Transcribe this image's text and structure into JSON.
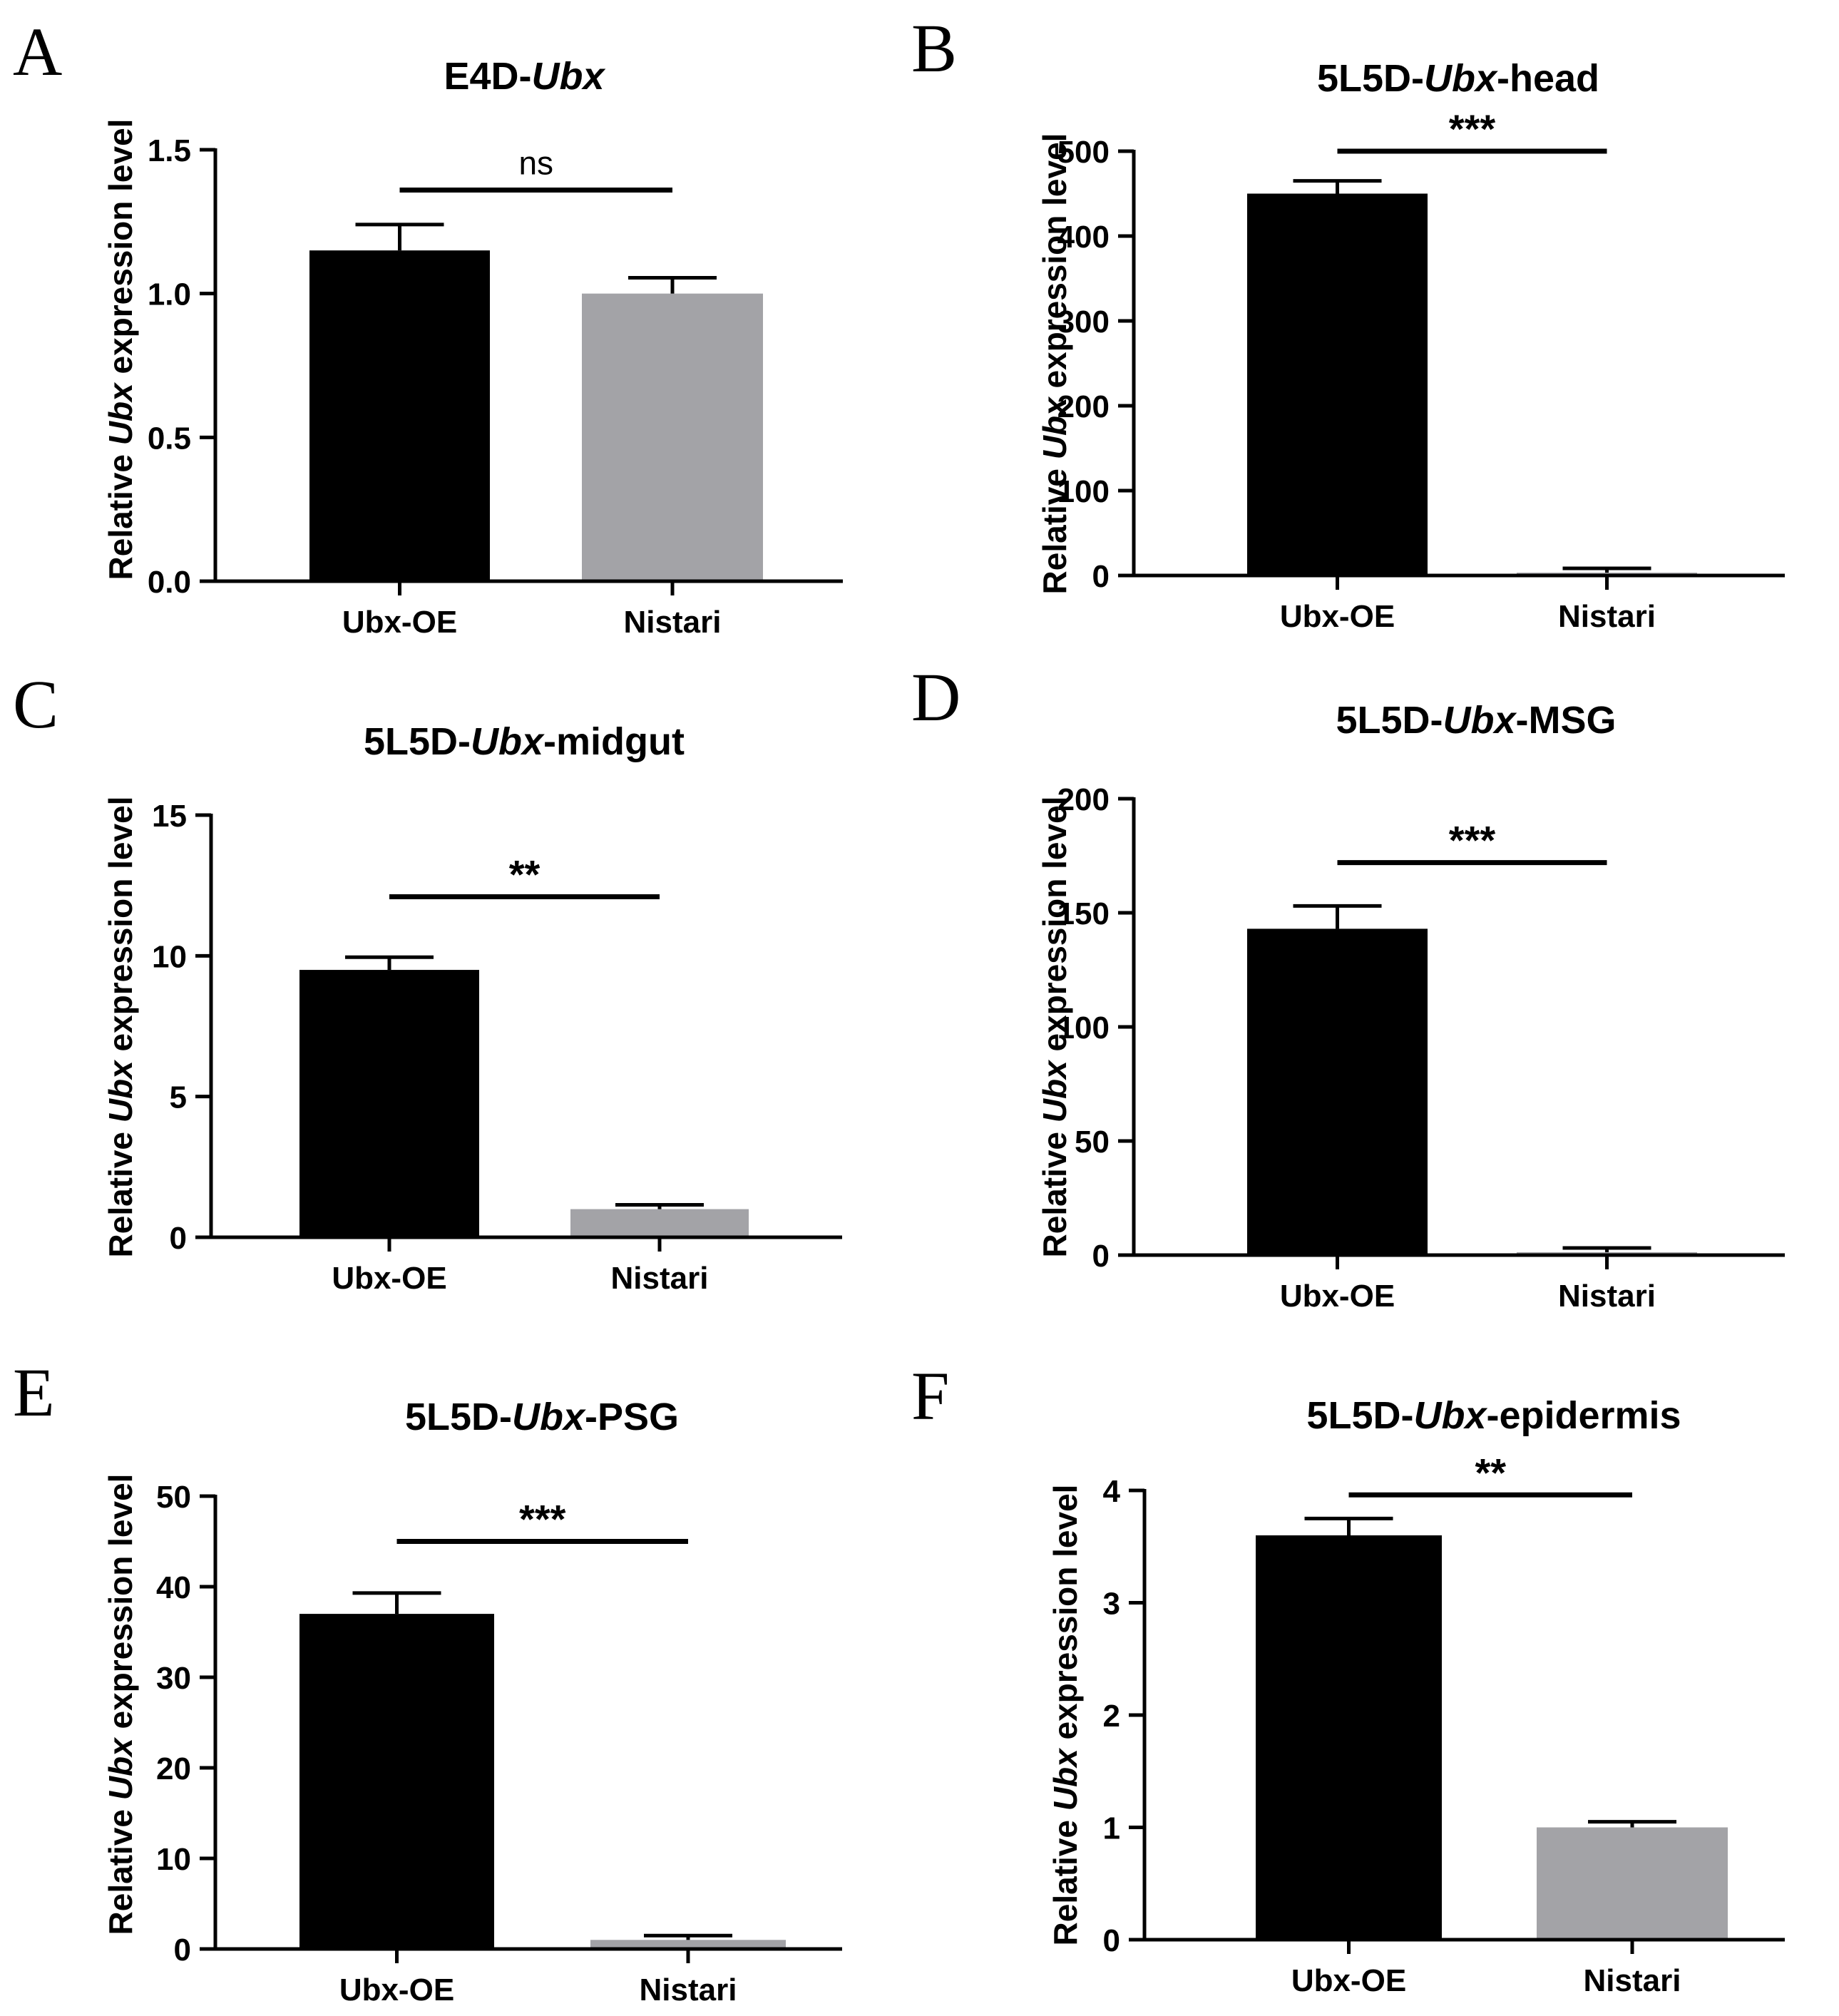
{
  "chart_data": [
    {
      "panel": "A",
      "type": "bar",
      "title_parts": [
        "E4D-",
        "Ubx",
        ""
      ],
      "ylabel_parts": [
        "Relative ",
        "Ubx",
        " expression level"
      ],
      "categories": [
        "Ubx-OE",
        "Nistari"
      ],
      "values": [
        1.15,
        1.0
      ],
      "errors": [
        0.09,
        0.055
      ],
      "colors": [
        "#000000",
        "#a3a3a7"
      ],
      "ylim": [
        0,
        1.5
      ],
      "yticks": [
        "0.0",
        "0.5",
        "1.0",
        "1.5"
      ],
      "ytick_values": [
        0,
        0.5,
        1.0,
        1.5
      ],
      "significance": "ns",
      "sig_y": 1.36
    },
    {
      "panel": "B",
      "type": "bar",
      "title_parts": [
        "5L5D-",
        "Ubx",
        "-head"
      ],
      "ylabel_parts": [
        "Relative ",
        "Ubx",
        " expression level"
      ],
      "categories": [
        "Ubx-OE",
        "Nistari"
      ],
      "values": [
        450,
        1.0
      ],
      "errors": [
        15,
        0.05
      ],
      "colors": [
        "#000000",
        "#a3a3a7"
      ],
      "ylim": [
        0,
        500
      ],
      "yticks": [
        "0",
        "100",
        "200",
        "300",
        "400",
        "500"
      ],
      "ytick_values": [
        0,
        100,
        200,
        300,
        400,
        500
      ],
      "significance": "***",
      "sig_y": 500
    },
    {
      "panel": "C",
      "type": "bar",
      "title_parts": [
        "5L5D-",
        "Ubx",
        "-midgut"
      ],
      "ylabel_parts": [
        "Relative ",
        "Ubx",
        " expression level"
      ],
      "categories": [
        "Ubx-OE",
        "Nistari"
      ],
      "values": [
        9.5,
        1.0
      ],
      "errors": [
        0.45,
        0.1
      ],
      "colors": [
        "#000000",
        "#a3a3a7"
      ],
      "ylim": [
        0,
        15
      ],
      "yticks": [
        "0",
        "5",
        "10",
        "15"
      ],
      "ytick_values": [
        0,
        5,
        10,
        15
      ],
      "significance": "**",
      "sig_y": 12.1
    },
    {
      "panel": "D",
      "type": "bar",
      "title_parts": [
        "5L5D-",
        "Ubx",
        "-MSG"
      ],
      "ylabel_parts": [
        "Relative ",
        "Ubx",
        " expression level"
      ],
      "categories": [
        "Ubx-OE",
        "Nistari"
      ],
      "values": [
        143,
        1.0
      ],
      "errors": [
        10,
        0.2
      ],
      "colors": [
        "#000000",
        "#a3a3a7"
      ],
      "ylim": [
        0,
        200
      ],
      "yticks": [
        "0",
        "50",
        "100",
        "150",
        "200"
      ],
      "ytick_values": [
        0,
        50,
        100,
        150,
        200
      ],
      "significance": "***",
      "sig_y": 172
    },
    {
      "panel": "E",
      "type": "bar",
      "title_parts": [
        "5L5D-",
        "Ubx",
        "-PSG"
      ],
      "ylabel_parts": [
        "Relative ",
        "Ubx",
        " expression level"
      ],
      "categories": [
        "Ubx-OE",
        "Nistari"
      ],
      "values": [
        37,
        1.0
      ],
      "errors": [
        2.3,
        0.4
      ],
      "colors": [
        "#000000",
        "#a3a3a7"
      ],
      "ylim": [
        0,
        50
      ],
      "yticks": [
        "0",
        "10",
        "20",
        "30",
        "40",
        "50"
      ],
      "ytick_values": [
        0,
        10,
        20,
        30,
        40,
        50
      ],
      "significance": "***",
      "sig_y": 45
    },
    {
      "panel": "F",
      "type": "bar",
      "title_parts": [
        "5L5D-",
        "Ubx",
        "-epidermis"
      ],
      "ylabel_parts": [
        "Relative ",
        "Ubx",
        " expression level"
      ],
      "categories": [
        "Ubx-OE",
        "Nistari"
      ],
      "values": [
        3.6,
        1.0
      ],
      "errors": [
        0.15,
        0.05
      ],
      "colors": [
        "#000000",
        "#a3a3a7"
      ],
      "ylim": [
        0,
        4
      ],
      "yticks": [
        "0",
        "1",
        "2",
        "3",
        "4"
      ],
      "ytick_values": [
        0,
        1,
        2,
        3,
        4
      ],
      "significance": "**",
      "sig_y": 3.96
    }
  ]
}
